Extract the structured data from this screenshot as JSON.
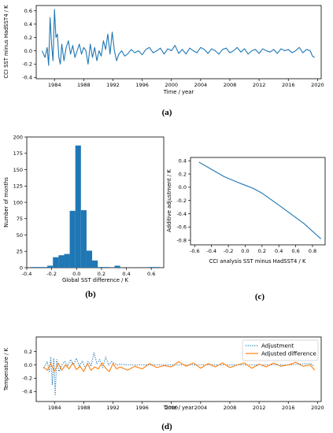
{
  "colors": {
    "blue": "#1f77b4",
    "orange": "#ff7f0e",
    "axis": "#000000"
  },
  "panels": {
    "a": {
      "caption": "(a)"
    },
    "b": {
      "caption": "(b)"
    },
    "c": {
      "caption": "(c)"
    },
    "d": {
      "caption": "(d)"
    }
  },
  "chart_data": [
    {
      "id": "a",
      "type": "line",
      "xlabel": "Time / year",
      "ylabel": "CCI SST minus HadSST4 / K",
      "xlim": [
        1981.5,
        2020.5
      ],
      "ylim": [
        -0.42,
        0.68
      ],
      "xticks": [
        1984,
        1988,
        1992,
        1996,
        2000,
        2004,
        2008,
        2012,
        2016,
        2020
      ],
      "yticks": [
        -0.4,
        -0.2,
        0.0,
        0.2,
        0.4,
        0.6
      ],
      "ytick_labels": [
        "-0.4",
        "-0.2",
        "0.0",
        "0.2",
        "0.4",
        "0.6"
      ],
      "grid": false,
      "series": [
        {
          "color": "#1f77b4",
          "x": [
            1982.3,
            1982.7,
            1983.0,
            1983.2,
            1983.4,
            1983.6,
            1983.8,
            1984.0,
            1984.2,
            1984.4,
            1984.6,
            1984.8,
            1985.0,
            1985.3,
            1985.6,
            1985.9,
            1986.2,
            1986.5,
            1986.8,
            1987.1,
            1987.4,
            1987.7,
            1988.0,
            1988.3,
            1988.6,
            1988.9,
            1989.2,
            1989.5,
            1989.8,
            1990.1,
            1990.4,
            1990.7,
            1991.0,
            1991.3,
            1991.6,
            1991.9,
            1992.2,
            1992.5,
            1992.8,
            1993.2,
            1993.6,
            1994.0,
            1994.5,
            1995.0,
            1995.5,
            1996.0,
            1996.5,
            1997.0,
            1997.5,
            1998.0,
            1998.5,
            1999.0,
            1999.5,
            2000.0,
            2000.5,
            2001.0,
            2001.5,
            2002.0,
            2002.5,
            2003.0,
            2003.5,
            2004.0,
            2004.5,
            2005.0,
            2005.5,
            2006.0,
            2006.5,
            2007.0,
            2007.5,
            2008.0,
            2008.5,
            2009.0,
            2009.5,
            2010.0,
            2010.5,
            2011.0,
            2011.5,
            2012.0,
            2012.5,
            2013.0,
            2013.5,
            2014.0,
            2014.5,
            2015.0,
            2015.5,
            2016.0,
            2016.5,
            2017.0,
            2017.5,
            2018.0,
            2018.5,
            2019.0,
            2019.3,
            2019.6
          ],
          "y": [
            0.0,
            -0.1,
            0.05,
            -0.22,
            0.5,
            0.1,
            -0.15,
            0.62,
            0.2,
            0.25,
            -0.1,
            -0.2,
            0.1,
            -0.15,
            0.05,
            0.15,
            -0.05,
            0.08,
            -0.1,
            0.0,
            0.1,
            -0.05,
            0.05,
            0.0,
            -0.2,
            0.1,
            -0.1,
            0.05,
            -0.15,
            0.0,
            -0.08,
            0.15,
            0.02,
            0.25,
            -0.05,
            0.28,
            0.0,
            -0.15,
            -0.05,
            0.0,
            -0.08,
            -0.05,
            0.02,
            -0.03,
            0.0,
            -0.06,
            0.02,
            0.05,
            -0.03,
            0.0,
            0.04,
            -0.05,
            0.03,
            0.0,
            0.08,
            -0.04,
            0.02,
            -0.05,
            0.04,
            0.0,
            -0.03,
            0.05,
            0.02,
            -0.04,
            0.03,
            0.0,
            -0.05,
            0.02,
            0.04,
            -0.03,
            0.0,
            0.05,
            -0.02,
            0.03,
            -0.05,
            0.0,
            0.02,
            -0.04,
            0.03,
            0.0,
            -0.02,
            0.02,
            -0.04,
            0.03,
            0.0,
            0.02,
            -0.03,
            0.0,
            0.05,
            -0.03,
            0.02,
            0.0,
            -0.08,
            -0.1
          ]
        }
      ]
    },
    {
      "id": "b",
      "type": "bar",
      "xlabel": "Global SST difference / K",
      "ylabel": "Number of months",
      "xlim": [
        -0.4,
        0.7
      ],
      "ylim": [
        0,
        200
      ],
      "xticks": [
        -0.4,
        -0.2,
        0.0,
        0.2,
        0.4,
        0.6
      ],
      "xtick_labels": [
        "-0.4",
        "-0.2",
        "0.0",
        "0.2",
        "0.4",
        "0.6"
      ],
      "yticks": [
        0,
        25,
        50,
        75,
        100,
        125,
        150,
        175,
        200
      ],
      "grid": false,
      "bin_width": 0.045,
      "bin_left_edges": [
        -0.37,
        -0.325,
        -0.28,
        -0.235,
        -0.19,
        -0.145,
        -0.1,
        -0.055,
        -0.01,
        0.035,
        0.08,
        0.125,
        0.17,
        0.215,
        0.26,
        0.305,
        0.35,
        0.395,
        0.44,
        0.485,
        0.53,
        0.575,
        0.62
      ],
      "values": [
        1,
        1,
        1,
        3,
        16,
        19,
        21,
        87,
        187,
        88,
        26,
        11,
        1,
        1,
        0,
        3,
        0,
        0,
        0,
        0,
        0,
        1,
        1
      ]
    },
    {
      "id": "c",
      "type": "line",
      "xlabel": "CCI analysis SST minus HadSST4 / K",
      "ylabel": "Additive adjustment / K",
      "xlim": [
        -0.65,
        0.95
      ],
      "ylim": [
        -0.87,
        0.45
      ],
      "xticks": [
        -0.6,
        -0.4,
        -0.2,
        0.0,
        0.2,
        0.4,
        0.6,
        0.8
      ],
      "xtick_labels": [
        "-0.6",
        "-0.4",
        "-0.2",
        "0.0",
        "0.2",
        "0.4",
        "0.6",
        "0.8"
      ],
      "yticks": [
        -0.8,
        -0.6,
        -0.4,
        -0.2,
        0.0,
        0.2,
        0.4
      ],
      "ytick_labels": [
        "-0.8",
        "-0.6",
        "-0.4",
        "-0.2",
        "0.0",
        "0.2",
        "0.4"
      ],
      "grid": false,
      "series": [
        {
          "color": "#1f77b4",
          "x": [
            -0.55,
            -0.4,
            -0.25,
            -0.1,
            0.0,
            0.1,
            0.2,
            0.3,
            0.4,
            0.55,
            0.7,
            0.9
          ],
          "y": [
            0.38,
            0.27,
            0.16,
            0.08,
            0.03,
            -0.02,
            -0.09,
            -0.18,
            -0.27,
            -0.41,
            -0.55,
            -0.78
          ]
        }
      ]
    },
    {
      "id": "d",
      "type": "line",
      "xlabel": "Time / year",
      "ylabel": "Temperature / K",
      "xlim": [
        1981.5,
        2020.5
      ],
      "ylim": [
        -0.55,
        0.42
      ],
      "xticks": [
        1984,
        1988,
        1992,
        1996,
        2000,
        2004,
        2008,
        2012,
        2016,
        2020
      ],
      "yticks": [
        -0.4,
        -0.2,
        0.0,
        0.2
      ],
      "ytick_labels": [
        "-0.4",
        "-0.2",
        "0.0",
        "0.2"
      ],
      "grid": false,
      "legend_position": "top-right",
      "series": [
        {
          "name": "Adjustment",
          "color": "#1f77b4",
          "style": "dotted",
          "x": [
            1982.5,
            1983.0,
            1983.3,
            1983.5,
            1983.7,
            1983.9,
            1984.1,
            1984.3,
            1984.6,
            1985.0,
            1985.4,
            1985.8,
            1986.2,
            1986.6,
            1987.0,
            1987.4,
            1987.8,
            1988.2,
            1988.6,
            1989.0,
            1989.4,
            1989.8,
            1990.2,
            1990.6,
            1991.0,
            1991.4,
            1991.8,
            1992.2,
            1992.6,
            1993.0,
            1994.0,
            1996.0,
            2000.0,
            2004.0,
            2008.0,
            2012.0,
            2016.0,
            2019.0,
            2019.6
          ],
          "y": [
            -0.05,
            0.05,
            -0.1,
            0.12,
            -0.3,
            0.1,
            -0.45,
            0.08,
            -0.1,
            0.0,
            0.05,
            -0.02,
            0.08,
            0.0,
            0.1,
            -0.02,
            0.06,
            -0.05,
            0.05,
            -0.02,
            0.18,
            0.02,
            0.08,
            -0.04,
            0.12,
            0.0,
            0.05,
            0.02,
            0.0,
            0.01,
            0.0,
            0.0,
            0.0,
            0.0,
            0.0,
            0.0,
            0.0,
            0.02,
            -0.02
          ]
        },
        {
          "name": "Adjusted difference",
          "color": "#ff7f0e",
          "style": "solid",
          "x": [
            1982.5,
            1983.0,
            1983.5,
            1984.0,
            1984.5,
            1985.0,
            1985.5,
            1986.0,
            1986.5,
            1987.0,
            1987.5,
            1988.0,
            1988.5,
            1989.0,
            1989.5,
            1990.0,
            1990.5,
            1991.0,
            1991.5,
            1992.0,
            1992.5,
            1993.0,
            1994.0,
            1995.0,
            1996.0,
            1997.0,
            1998.0,
            1999.0,
            2000.0,
            2001.0,
            2002.0,
            2003.0,
            2004.0,
            2005.0,
            2006.0,
            2007.0,
            2008.0,
            2009.0,
            2010.0,
            2011.0,
            2012.0,
            2013.0,
            2014.0,
            2015.0,
            2016.0,
            2017.0,
            2018.0,
            2019.0,
            2019.6
          ],
          "y": [
            -0.03,
            -0.08,
            0.02,
            -0.1,
            0.03,
            -0.08,
            0.0,
            -0.06,
            0.03,
            -0.07,
            -0.02,
            -0.1,
            0.02,
            -0.08,
            -0.03,
            -0.06,
            0.03,
            -0.05,
            -0.1,
            0.02,
            -0.06,
            -0.03,
            -0.08,
            -0.02,
            -0.06,
            0.02,
            -0.04,
            -0.01,
            -0.03,
            0.05,
            -0.02,
            0.03,
            -0.05,
            0.02,
            -0.03,
            0.03,
            -0.04,
            0.0,
            0.03,
            -0.05,
            0.01,
            -0.03,
            0.03,
            -0.02,
            0.0,
            0.04,
            -0.02,
            0.0,
            -0.08
          ]
        }
      ]
    }
  ]
}
